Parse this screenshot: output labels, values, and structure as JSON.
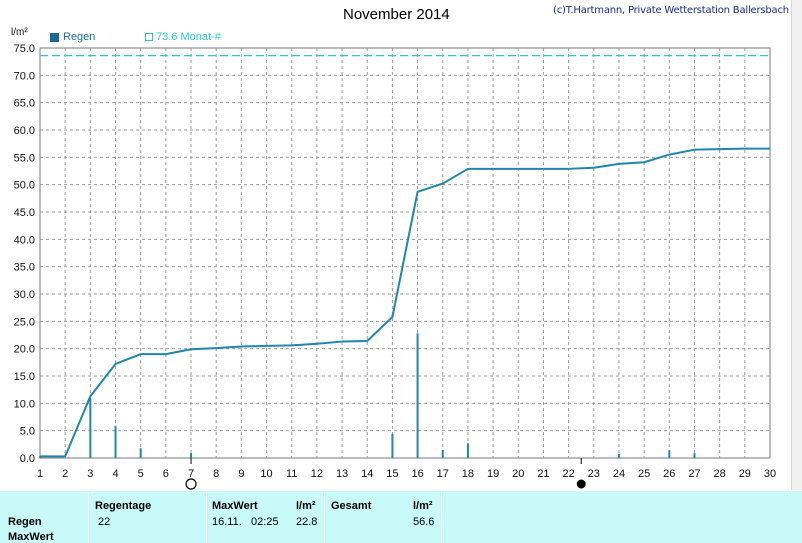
{
  "header": {
    "title": "November 2014",
    "copyright": "(c)T.Hartmann, Private Wetterstation Ballersbach",
    "unit": "l/m²"
  },
  "legend": {
    "regen": "Regen",
    "monat": "73.6 Monat-#"
  },
  "colors": {
    "cumulative_line": "#1f86b0",
    "daily_bars": "#1f86b0",
    "reference_line": "#27c9cf",
    "stats_background": "#c8fafa"
  },
  "chart_data": {
    "type": "line",
    "xlim": [
      1,
      30
    ],
    "ylim": [
      0,
      75
    ],
    "x_ticks": [
      1,
      2,
      3,
      4,
      5,
      6,
      7,
      8,
      9,
      10,
      11,
      12,
      13,
      14,
      15,
      16,
      17,
      18,
      19,
      20,
      21,
      22,
      23,
      24,
      25,
      26,
      27,
      28,
      29,
      30
    ],
    "y_ticks": [
      "0.0",
      "5.0",
      "10.0",
      "15.0",
      "20.0",
      "25.0",
      "30.0",
      "35.0",
      "40.0",
      "45.0",
      "50.0",
      "55.0",
      "60.0",
      "65.0",
      "70.0",
      "75.0"
    ],
    "grid": true,
    "reference_value": 73.6,
    "cumulative": {
      "x": [
        1,
        2,
        3,
        4,
        5,
        6,
        7,
        8,
        9,
        10,
        11,
        12,
        13,
        14,
        15,
        16,
        17,
        18,
        19,
        20,
        21,
        22,
        23,
        24,
        25,
        26,
        27,
        28,
        29,
        30
      ],
      "y": [
        0.3,
        0.3,
        11.3,
        17.2,
        19.0,
        19.0,
        19.9,
        20.1,
        20.4,
        20.5,
        20.6,
        20.9,
        21.3,
        21.4,
        25.8,
        48.7,
        50.2,
        52.9,
        52.9,
        52.9,
        52.9,
        52.9,
        53.1,
        53.8,
        54.1,
        55.5,
        56.4,
        56.5,
        56.6,
        56.6
      ]
    },
    "daily": {
      "x": [
        1,
        3,
        4,
        5,
        7,
        15,
        16,
        17,
        18,
        24,
        26,
        27
      ],
      "y": [
        0.3,
        11.0,
        5.9,
        1.8,
        0.9,
        4.4,
        22.8,
        1.5,
        2.7,
        0.7,
        1.4,
        0.9
      ]
    },
    "markers": [
      {
        "x": 7,
        "symbol": "open-circle"
      },
      {
        "x": 22.5,
        "symbol": "filled-circle"
      }
    ]
  },
  "stats": {
    "row_labels": [
      "Regen",
      "MaxWert"
    ],
    "regentage_header": "Regentage",
    "regentage_value": "22",
    "maxwert_header": "MaxWert",
    "maxwert_unit": "l/m²",
    "maxwert_date": "16.11.",
    "maxwert_time": "02:25",
    "maxwert_value": "22.8",
    "gesamt_header": "Gesamt",
    "gesamt_unit": "l/m²",
    "gesamt_value": "56.6"
  }
}
